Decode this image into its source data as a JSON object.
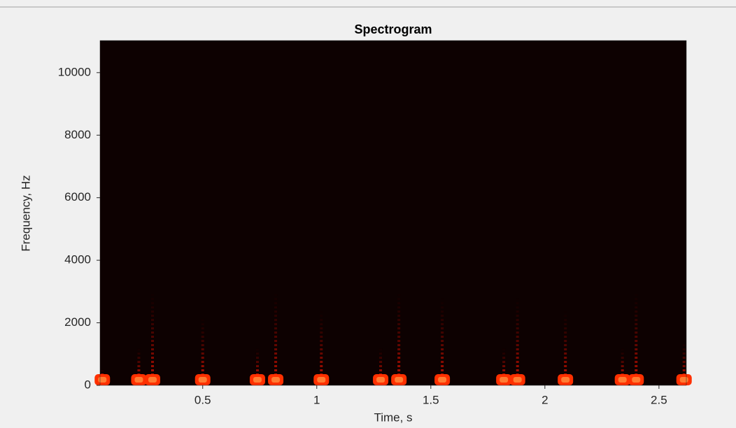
{
  "chart_data": {
    "type": "spectrogram",
    "title": "Spectrogram",
    "x_label": "Time, s",
    "y_label": "Frequency, Hz",
    "x": [
      0.06,
      0.22,
      0.28,
      0.5,
      0.74,
      0.82,
      1.02,
      1.28,
      1.36,
      1.55,
      1.82,
      1.88,
      2.09,
      2.34,
      2.4,
      2.61
    ],
    "values": [
      500,
      1200,
      3000,
      2200,
      1200,
      3000,
      2400,
      1200,
      3000,
      2800,
      1200,
      2800,
      2400,
      1200,
      3000,
      1400
    ],
    "color": "#ff3000",
    "background": "#0d0101",
    "xlim": [
      0.05,
      2.62
    ],
    "ylim": [
      0,
      11025
    ],
    "xticks": [
      0.5,
      1,
      1.5,
      2,
      2.5
    ],
    "yticks": [
      0,
      2000,
      4000,
      6000,
      8000,
      10000
    ]
  }
}
